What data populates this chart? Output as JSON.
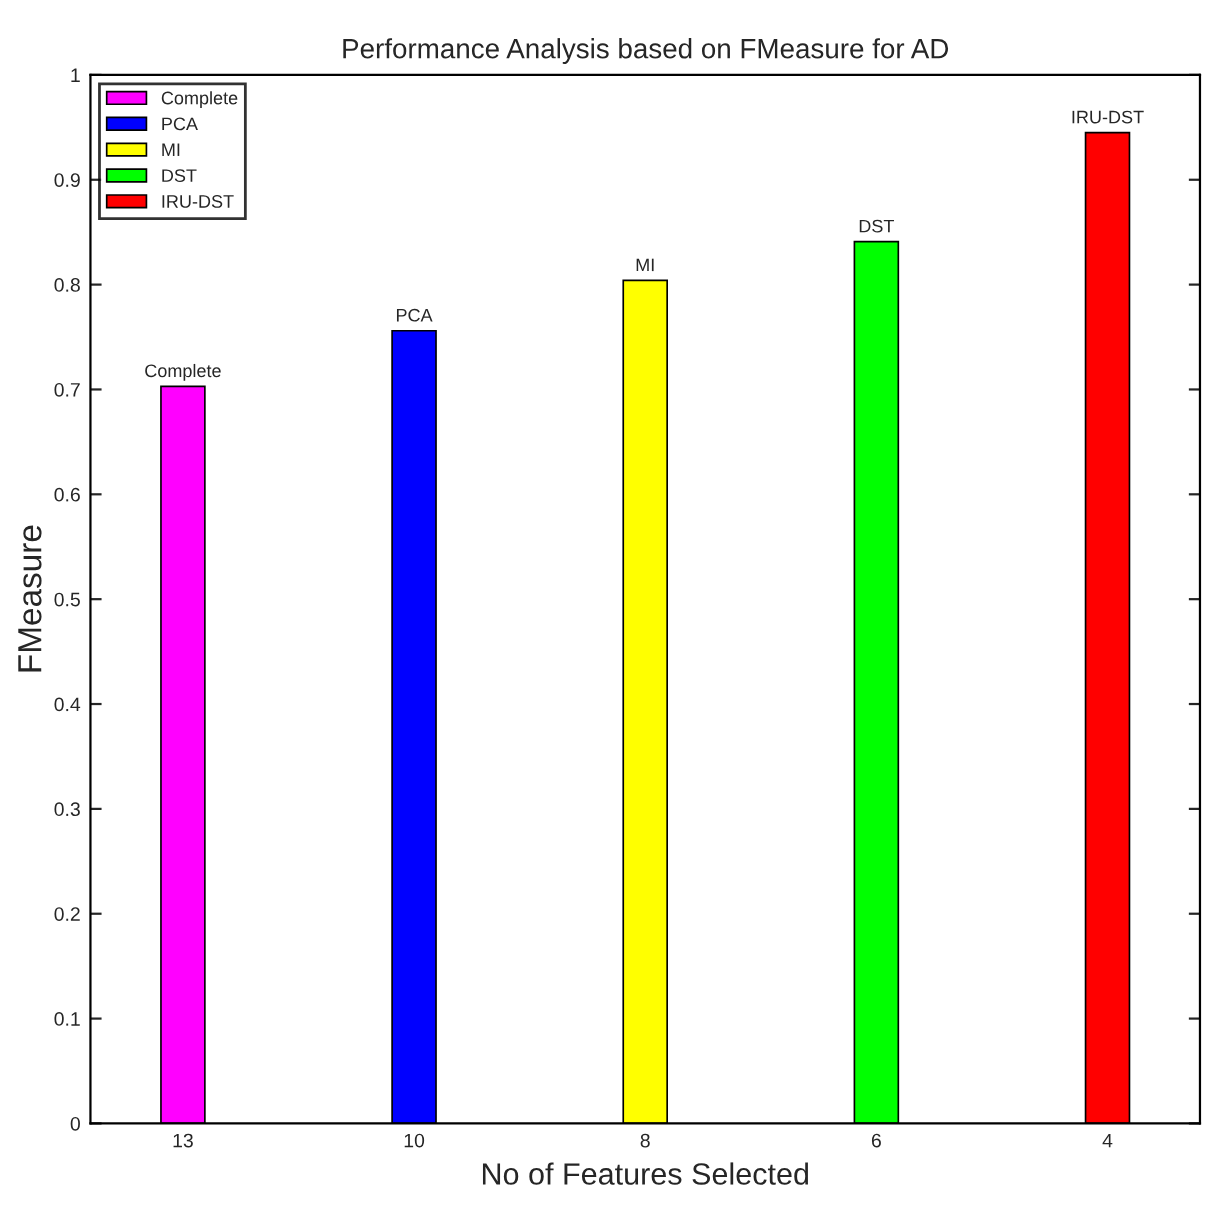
{
  "chart_data": {
    "type": "bar",
    "title": "Performance Analysis based on FMeasure for AD",
    "xlabel": "No of Features Selected",
    "ylabel": "FMeasure",
    "categories": [
      "13",
      "10",
      "8",
      "6",
      "4"
    ],
    "series": [
      {
        "name": "Complete",
        "color": "#ff00ff",
        "values": [
          0.703,
          null,
          null,
          null,
          null
        ]
      },
      {
        "name": "PCA",
        "color": "#0000ff",
        "values": [
          null,
          0.756,
          null,
          null,
          null
        ]
      },
      {
        "name": "MI",
        "color": "#ffff00",
        "values": [
          null,
          null,
          0.804,
          null,
          null
        ]
      },
      {
        "name": "DST",
        "color": "#00ff00",
        "values": [
          null,
          null,
          null,
          0.841,
          null
        ]
      },
      {
        "name": "IRU-DST",
        "color": "#ff0000",
        "values": [
          null,
          null,
          null,
          null,
          0.945
        ]
      }
    ],
    "annotations": [
      {
        "text": "Complete",
        "x": "13",
        "y": 0.703
      },
      {
        "text": "PCA",
        "x": "10",
        "y": 0.756
      },
      {
        "text": "MI",
        "x": "8",
        "y": 0.804
      },
      {
        "text": "DST",
        "x": "6",
        "y": 0.841
      },
      {
        "text": "IRU-DST",
        "x": "4",
        "y": 0.945
      }
    ],
    "ylim": [
      0,
      1
    ],
    "yticks": [
      0,
      0.1,
      0.2,
      0.3,
      0.4,
      0.5,
      0.6,
      0.7,
      0.8,
      0.9,
      1
    ],
    "legend": "top left",
    "grid": false
  }
}
